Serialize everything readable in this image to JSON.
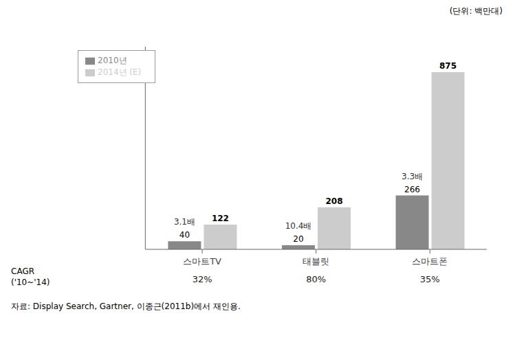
{
  "chart_data": {
    "type": "bar",
    "categories": [
      "스마트TV",
      "태블릿",
      "스마트폰"
    ],
    "series": [
      {
        "name": "2010년",
        "color": "#888888",
        "values": [
          40,
          20,
          266
        ]
      },
      {
        "name": "2014년 (E)",
        "color": "#cccccc",
        "values": [
          122,
          208,
          875
        ]
      }
    ],
    "ylim": [
      0,
      1000
    ],
    "tick_labels": "x",
    "data_labels": true,
    "legend": "upper left",
    "grid": false,
    "annotations": {
      "unit": "(단위: 백만대)",
      "multipliers": [
        "3.1배",
        "10.4배",
        "3.3배"
      ],
      "cagr_title": [
        "CAGR",
        "('10~'14)"
      ],
      "cagr": [
        "32%",
        "80%",
        "35%"
      ],
      "source": "자료: Display Search, Gartner, 이종근(2011b)에서 재인용."
    }
  }
}
